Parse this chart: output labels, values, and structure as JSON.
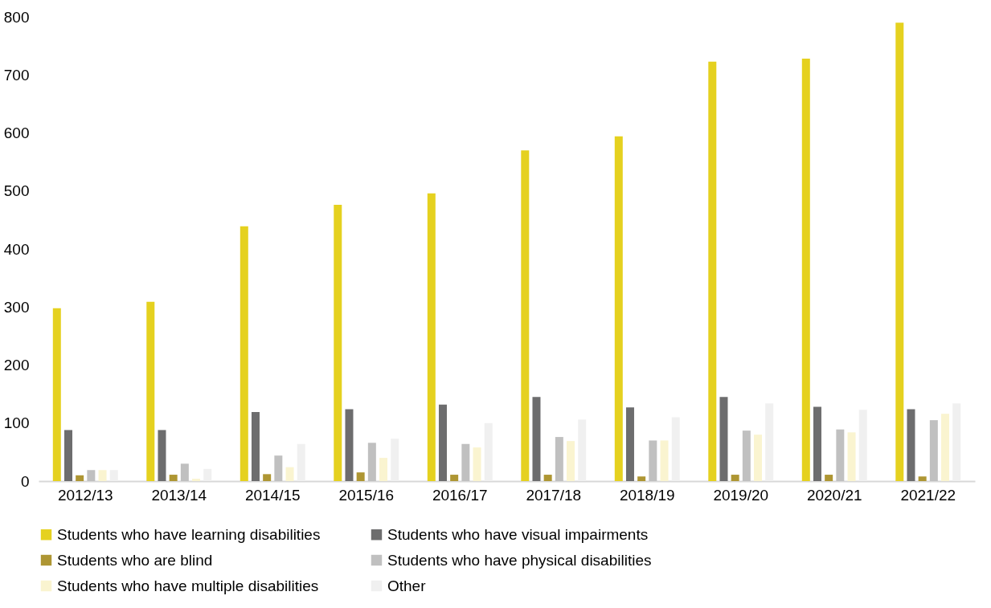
{
  "chart_data": {
    "type": "bar",
    "categories": [
      "2012/13",
      "2013/14",
      "2014/15",
      "2015/16",
      "2016/17",
      "2017/18",
      "2018/19",
      "2019/20",
      "2020/21",
      "2021/22"
    ],
    "series": [
      {
        "name": "Students who have learning disabilities",
        "color": "#e5d11f",
        "values": [
          298,
          309,
          439,
          476,
          496,
          570,
          594,
          723,
          728,
          790
        ]
      },
      {
        "name": "Students who have visual impairments",
        "color": "#6d6d6e",
        "values": [
          88,
          88,
          119,
          124,
          132,
          145,
          127,
          145,
          128,
          124
        ]
      },
      {
        "name": "Students who are blind",
        "color": "#ae9633",
        "values": [
          10,
          11,
          12,
          15,
          11,
          11,
          8,
          11,
          11,
          8
        ]
      },
      {
        "name": "Students who have physical disabilities",
        "color": "#c0c0c0",
        "values": [
          19,
          30,
          44,
          66,
          64,
          76,
          70,
          87,
          89,
          105
        ]
      },
      {
        "name": "Students who have multiple disabilities",
        "color": "#faf4d0",
        "values": [
          19,
          4,
          24,
          40,
          58,
          69,
          70,
          80,
          84,
          116
        ]
      },
      {
        "name": "Other",
        "color": "#f0f0f0",
        "values": [
          19,
          21,
          64,
          73,
          100,
          106,
          110,
          134,
          123,
          134
        ]
      }
    ],
    "ylim": [
      0,
      800
    ],
    "yticks": [
      0,
      100,
      200,
      300,
      400,
      500,
      600,
      700,
      800
    ],
    "grid": false,
    "legend": "bottom"
  }
}
